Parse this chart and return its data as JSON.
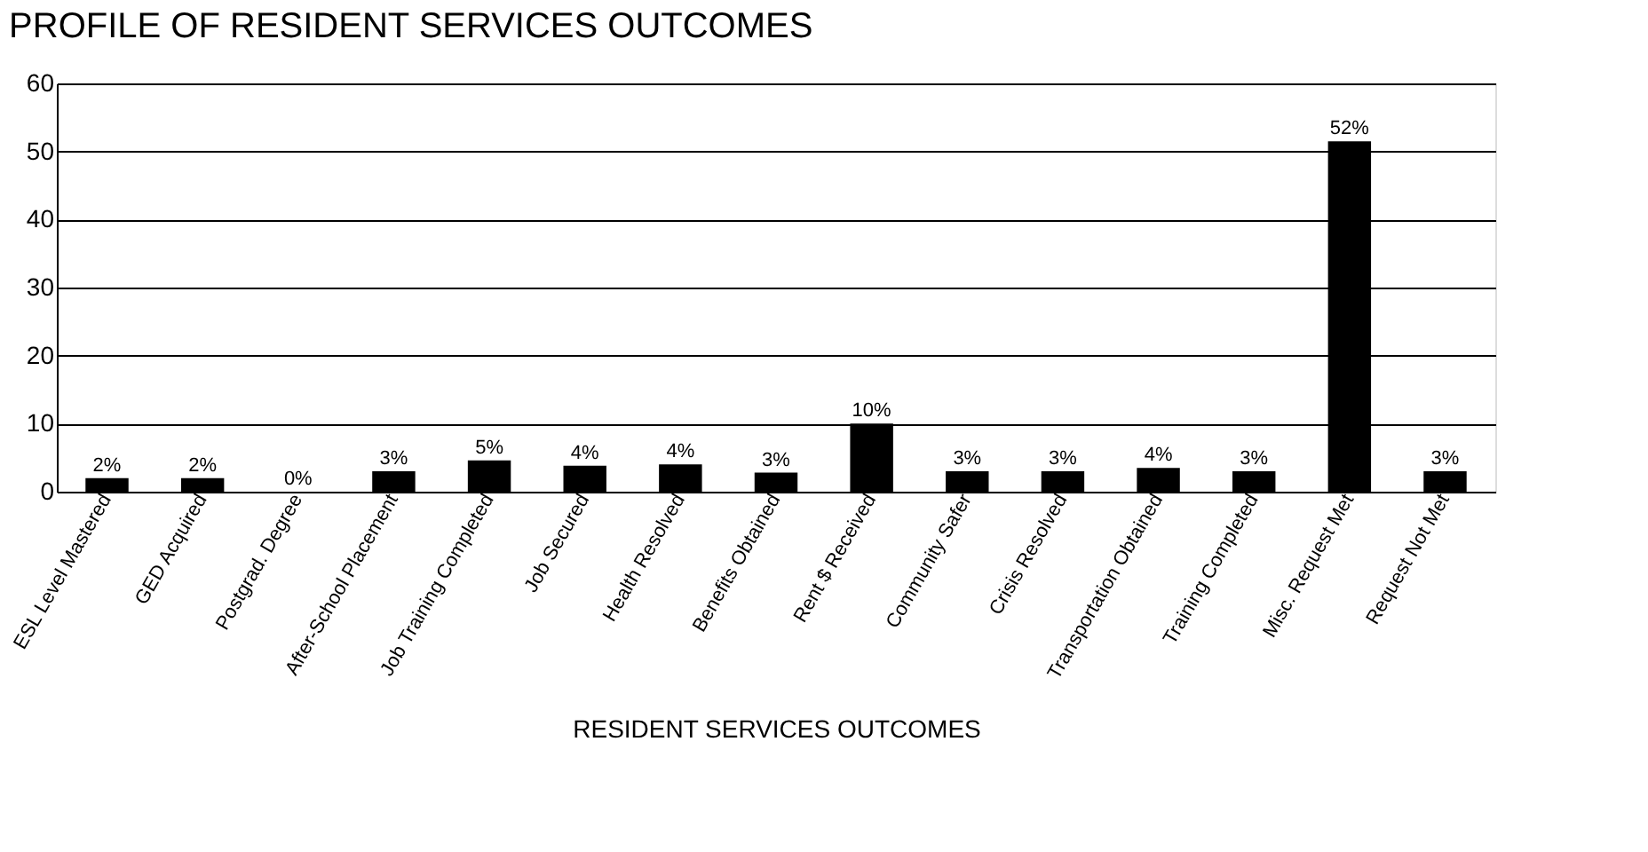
{
  "chart_data": {
    "type": "bar",
    "title": "PROFILE OF RESIDENT SERVICES OUTCOMES",
    "xlabel": "RESIDENT SERVICES OUTCOMES",
    "categories": [
      "ESL Level Mastered",
      "GED Acquired",
      "Postgrad. Degree",
      "After-School Placement",
      "Job Training Completed",
      "Job Secured",
      "Health Resolved",
      "Benefits Obtained",
      "Rent $ Received",
      "Community Safer",
      "Crisis Resolved",
      "Transportation Obtained",
      "Training Completed",
      "Misc. Request Met",
      "Request Not Met"
    ],
    "values": [
      2,
      2,
      0,
      3,
      4.6,
      3.8,
      4,
      2.8,
      10,
      3,
      3,
      3.5,
      3,
      51.5,
      3
    ],
    "value_labels": [
      "2%",
      "2%",
      "0%",
      "3%",
      "5%",
      "4%",
      "4%",
      "3%",
      "10%",
      "3%",
      "3%",
      "4%",
      "3%",
      "52%",
      "3%"
    ],
    "color": "#000000",
    "ylim": [
      0,
      60
    ],
    "yticks": [
      0,
      10,
      20,
      30,
      40,
      50,
      60
    ],
    "grid": "y"
  }
}
